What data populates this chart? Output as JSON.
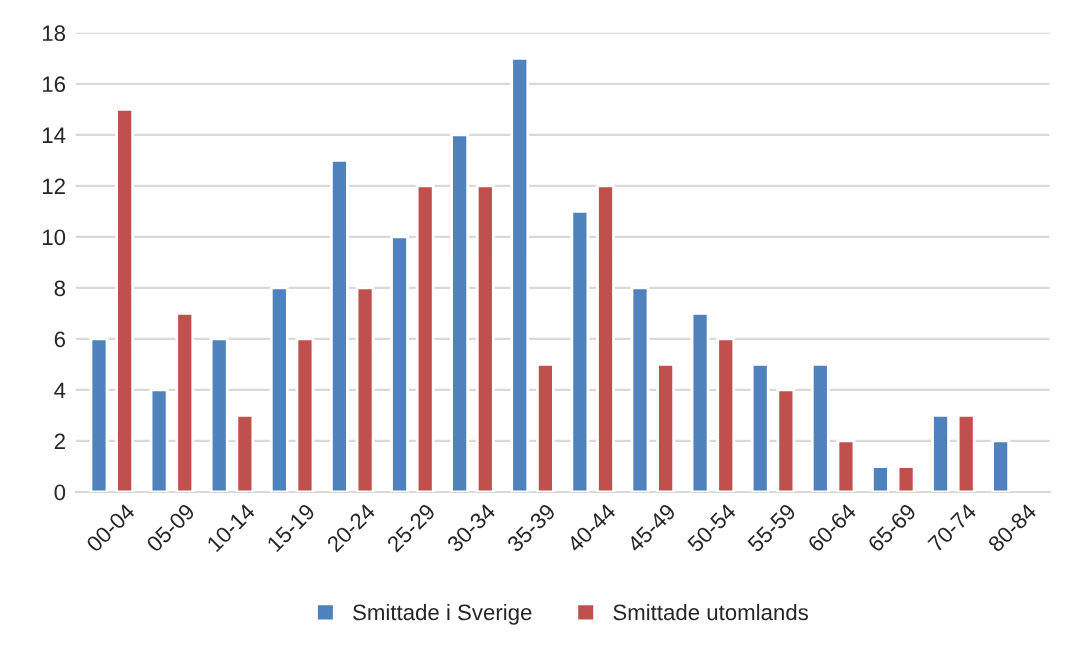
{
  "chart_data": {
    "type": "bar",
    "categories": [
      "00-04",
      "05-09",
      "10-14",
      "15-19",
      "20-24",
      "25-29",
      "30-34",
      "35-39",
      "40-44",
      "45-49",
      "50-54",
      "55-59",
      "60-64",
      "65-69",
      "70-74",
      "80-84"
    ],
    "series": [
      {
        "name": "Smittade i Sverige",
        "color": "#4f81bd",
        "values": [
          6,
          4,
          6,
          8,
          13,
          10,
          14,
          17,
          11,
          8,
          7,
          5,
          5,
          1,
          3,
          2
        ]
      },
      {
        "name": "Smittade utomlands",
        "color": "#c0504d",
        "values": [
          15,
          7,
          3,
          6,
          8,
          12,
          12,
          5,
          12,
          5,
          6,
          4,
          2,
          1,
          3,
          null
        ]
      }
    ],
    "ylim": [
      0,
      18
    ],
    "yticks": [
      0,
      2,
      4,
      6,
      8,
      10,
      12,
      14,
      16,
      18
    ],
    "grid": "y",
    "legend": "bottom"
  }
}
